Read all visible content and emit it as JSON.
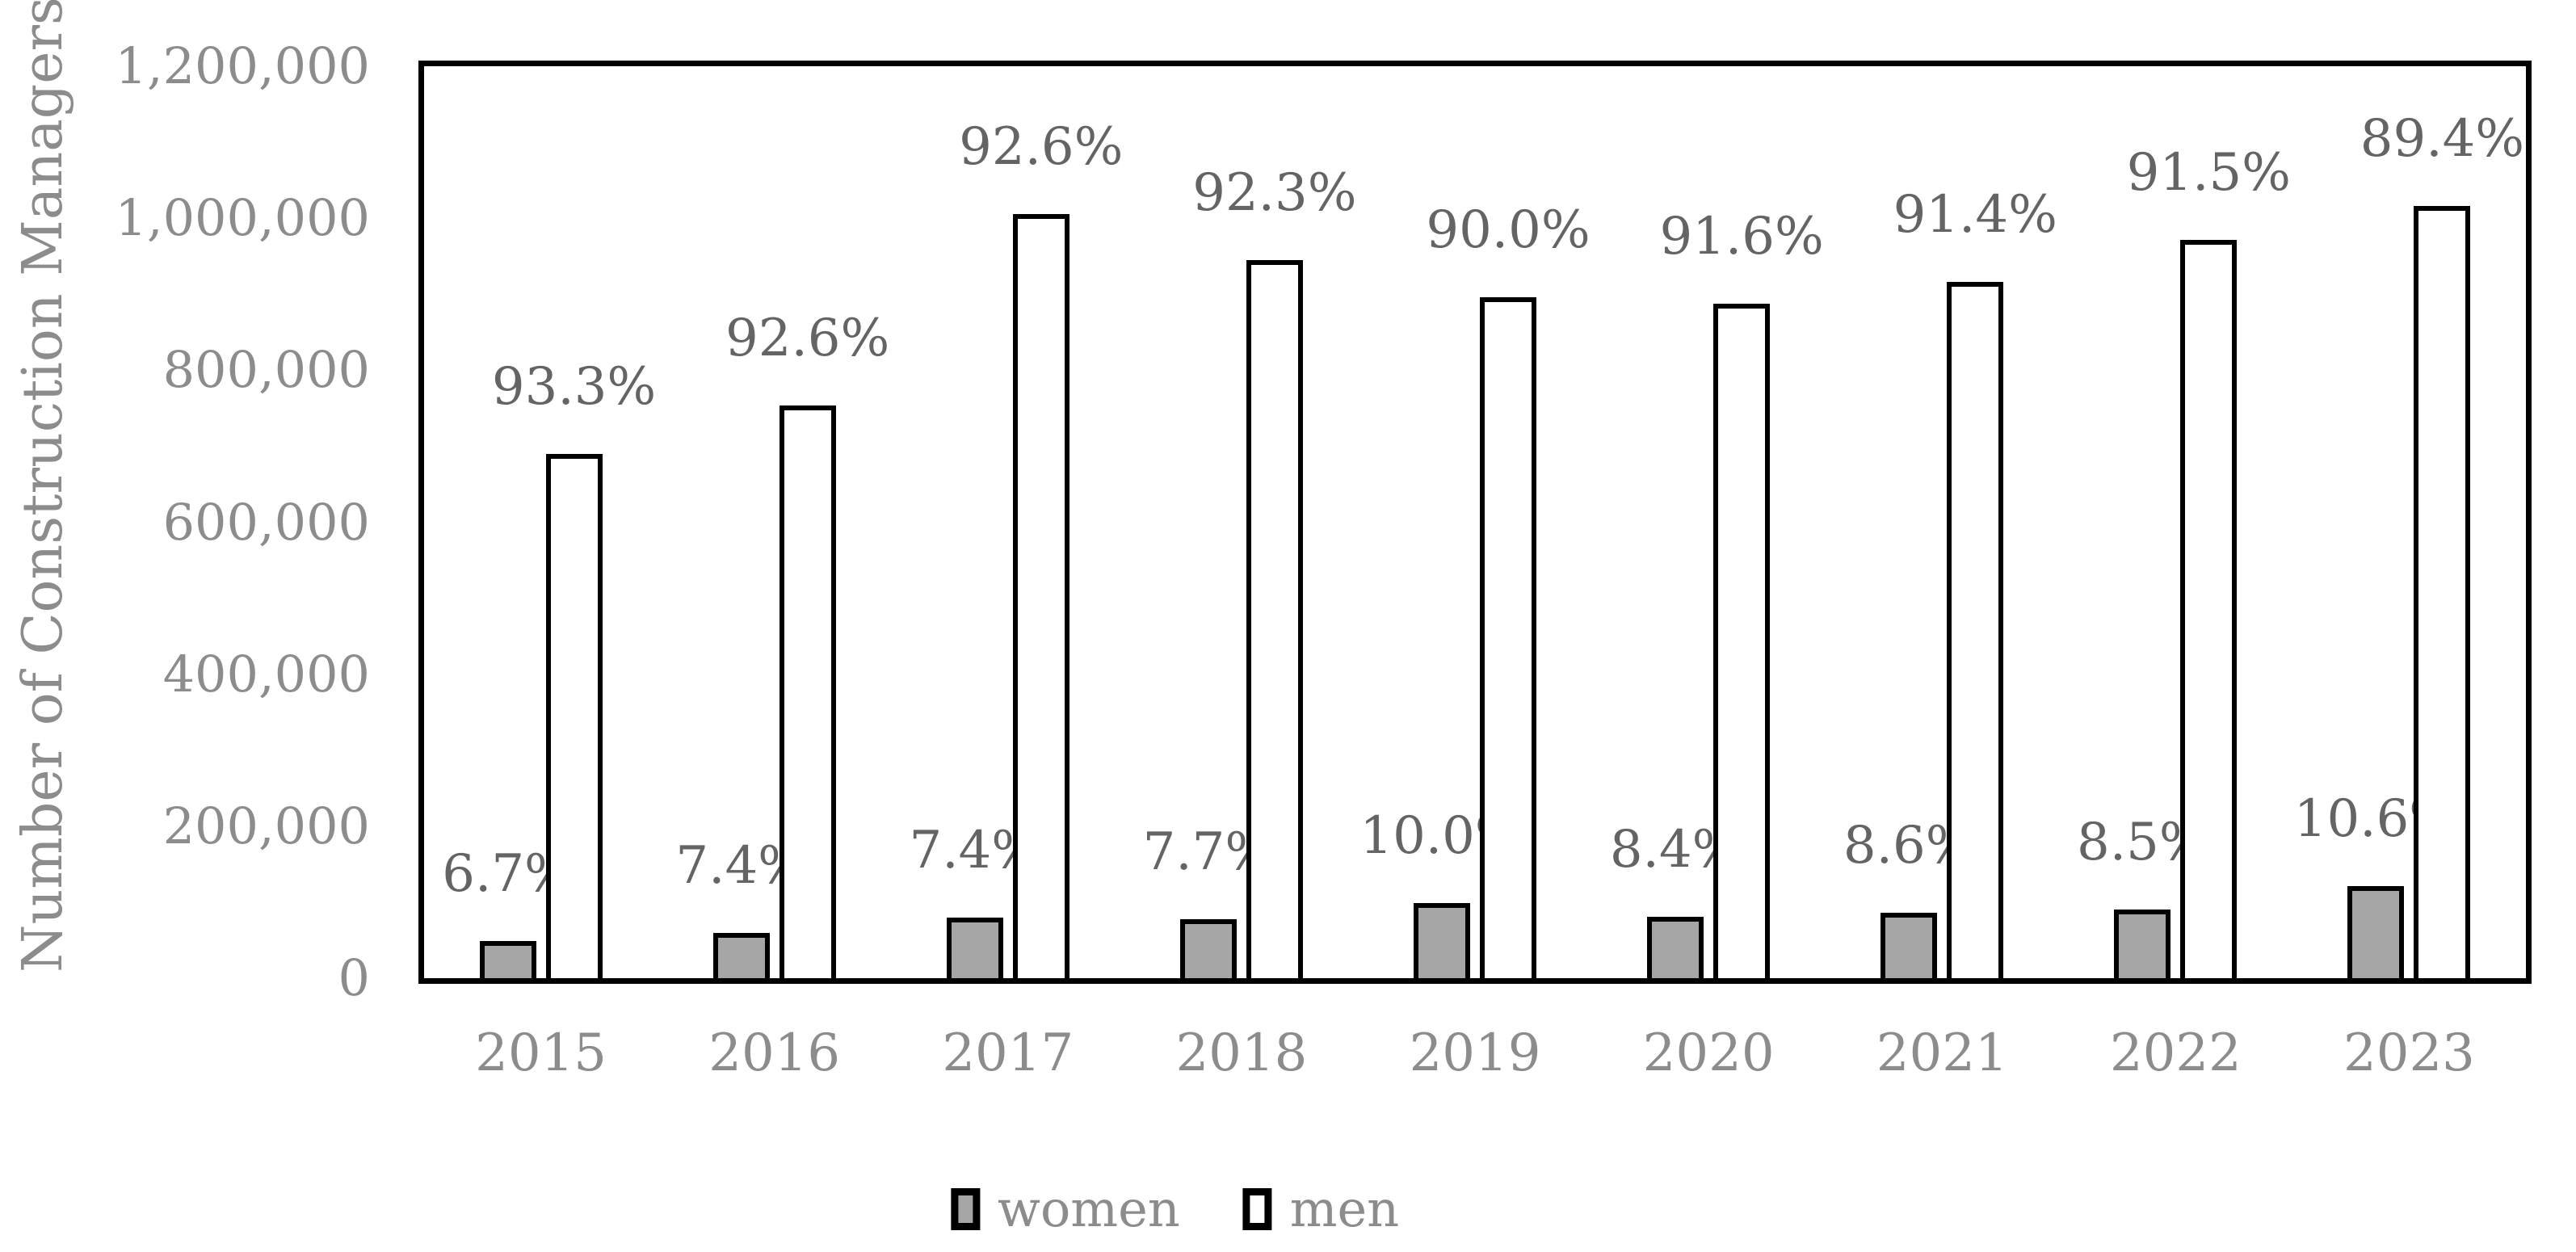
{
  "chart_data": {
    "type": "bar",
    "title": "",
    "ylabel": "Number of Construction Managers",
    "categories": [
      "2015",
      "2016",
      "2017",
      "2018",
      "2019",
      "2020",
      "2021",
      "2022",
      "2023"
    ],
    "series": [
      {
        "name": "women",
        "fill_color": "#a6a6a6",
        "border_color": "#000000",
        "values": [
          49000,
          60000,
          80000,
          78000,
          99000,
          81000,
          86000,
          90000,
          121000
        ],
        "percent_labels": [
          "6.7%",
          "7.4%",
          "7.4%",
          "7.7%",
          "10.0%",
          "8.4%",
          "8.6%",
          "8.5%",
          "10.6%"
        ]
      },
      {
        "name": "men",
        "fill_color": "#ffffff",
        "border_color": "#000000",
        "values": [
          690000,
          754000,
          1005000,
          945000,
          896000,
          887000,
          916000,
          971000,
          1016000
        ],
        "percent_labels": [
          "93.3%",
          "92.6%",
          "92.6%",
          "92.3%",
          "90.0%",
          "91.6%",
          "91.4%",
          "91.5%",
          "89.4%"
        ]
      }
    ],
    "ylim": [
      0,
      1200000
    ],
    "ytick_interval": 200000,
    "ytick_labels": [
      "1,200,000",
      "1,000,000",
      "800,000",
      "600,000",
      "400,000",
      "200,000",
      "0"
    ],
    "grid": false,
    "legend_position": "bottom"
  },
  "styles": {
    "axis_text_color": "#8c8c8c",
    "data_label_color": "#646464",
    "frame_color": "#000000",
    "women_fill": "#a6a6a6",
    "men_fill": "#ffffff"
  }
}
